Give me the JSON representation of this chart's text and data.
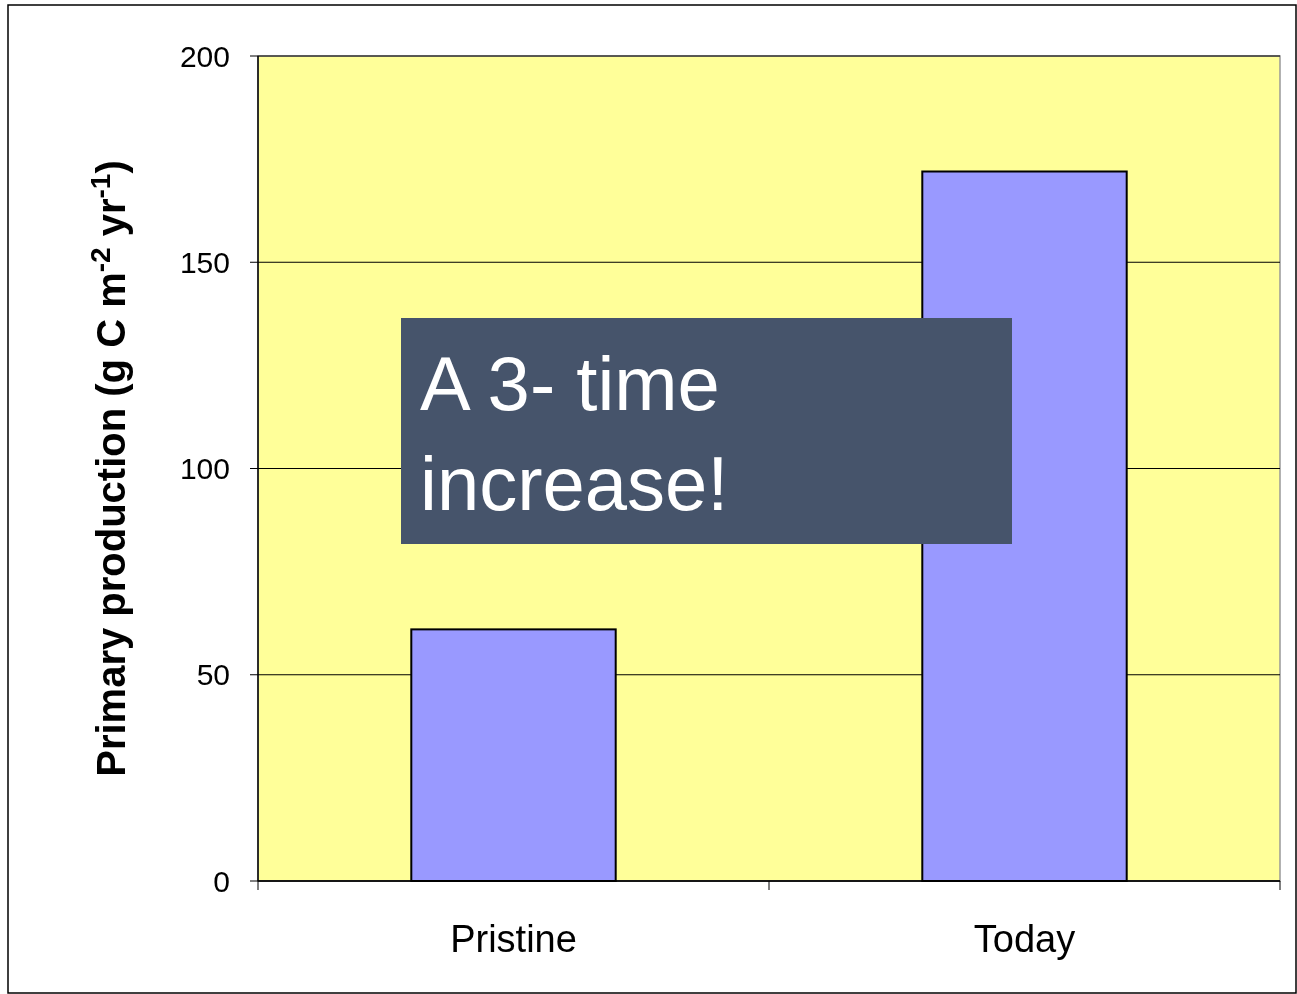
{
  "chart_data": {
    "type": "bar",
    "ylabel": "Primary production (g C m$^{-2}$ yr$^{-1}$)",
    "categories": [
      "Pristine",
      "Today"
    ],
    "values": [
      61,
      172
    ],
    "color": "#9999ff",
    "ylim": [
      0,
      200
    ],
    "yticks": [
      0,
      50,
      100,
      150,
      200
    ],
    "grid": "y",
    "annotations": [
      "A 3- time increase!"
    ]
  }
}
